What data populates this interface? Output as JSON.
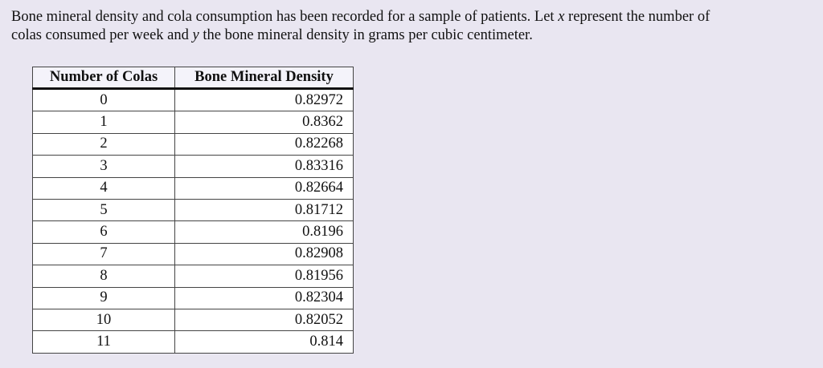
{
  "intro": [
    "Bone mineral density and cola consumption has been recorded for a sample of patients. Let ",
    "x",
    " represent the number of",
    "colas consumed per week and ",
    "y",
    " the bone mineral density in grams per cubic centimeter."
  ],
  "table": {
    "headers": [
      "Number of Colas",
      "Bone Mineral Density"
    ],
    "rows": [
      [
        0,
        0.82972
      ],
      [
        1,
        0.8362
      ],
      [
        2,
        0.82268
      ],
      [
        3,
        0.83316
      ],
      [
        4,
        0.82664
      ],
      [
        5,
        0.81712
      ],
      [
        6,
        0.8196
      ],
      [
        7,
        0.82908
      ],
      [
        8,
        0.81956
      ],
      [
        9,
        0.82304
      ],
      [
        10,
        0.82052
      ],
      [
        11,
        0.814
      ]
    ]
  }
}
